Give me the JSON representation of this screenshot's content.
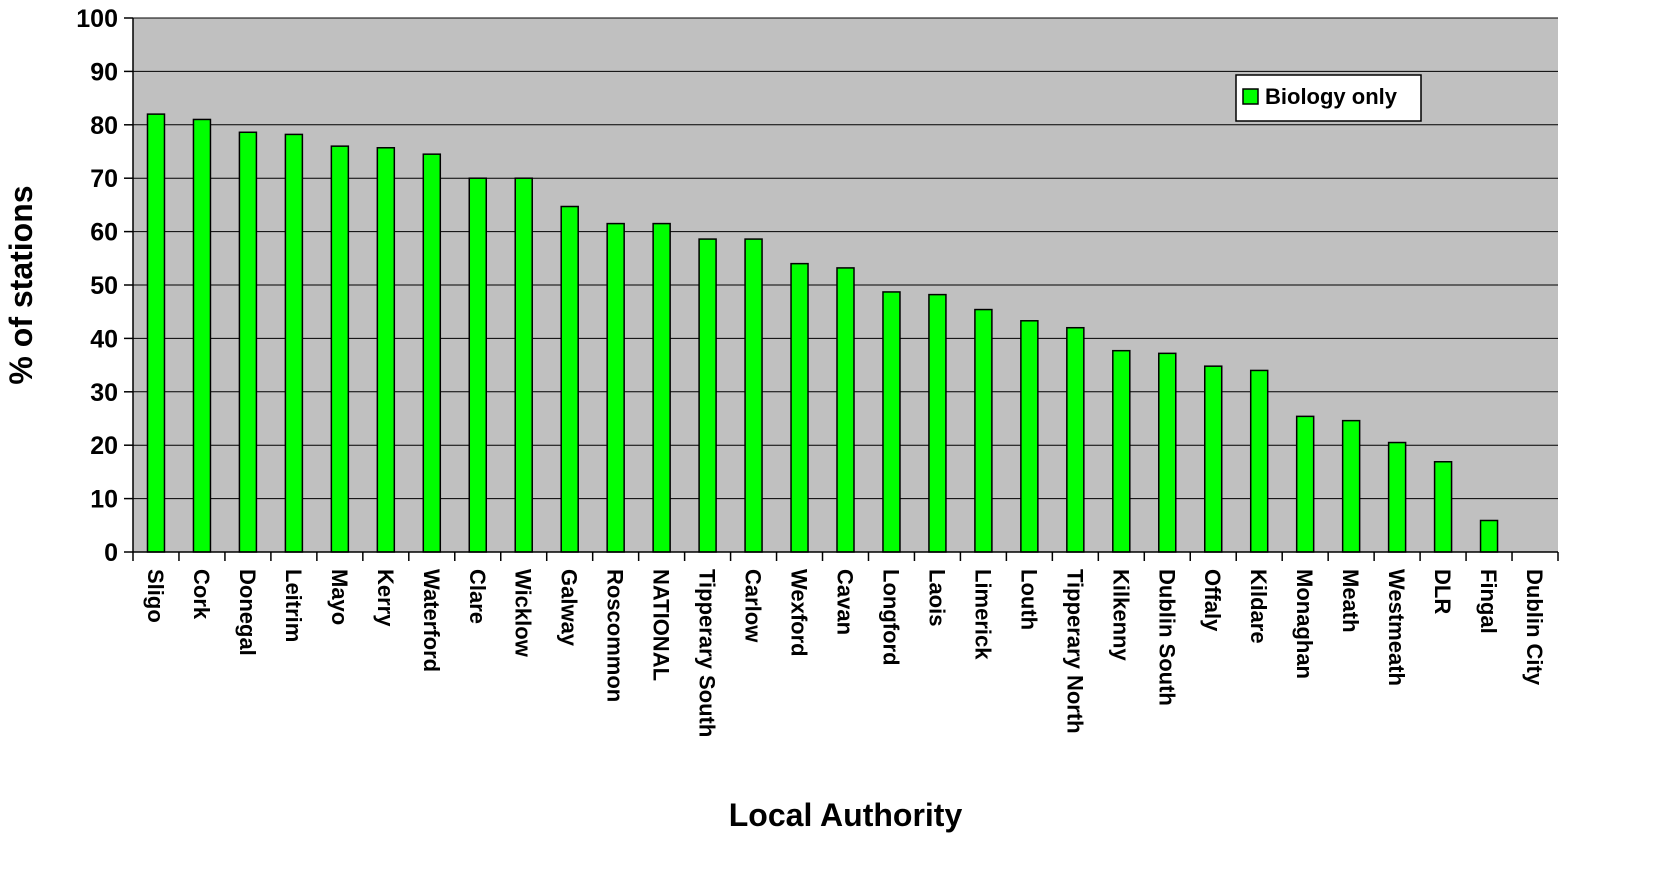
{
  "chart_data": {
    "type": "bar",
    "xlabel": "Local Authority",
    "ylabel": "% of stations",
    "ylim": [
      0,
      100
    ],
    "yticks": [
      0,
      10,
      20,
      30,
      40,
      50,
      60,
      70,
      80,
      90,
      100
    ],
    "grid": true,
    "legend_position": "top-right",
    "plot_background": "#c0c0c0",
    "categories": [
      "Sligo",
      "Cork",
      "Donegal",
      "Leitrim",
      "Mayo",
      "Kerry",
      "Waterford",
      "Clare",
      "Wicklow",
      "Galway",
      "Roscommon",
      "NATIONAL",
      "Tipperary South",
      "Carlow",
      "Wexford",
      "Cavan",
      "Longford",
      "Laois",
      "Limerick",
      "Louth",
      "Tipperary North",
      "Kilkenny",
      "Dublin South",
      "Offaly",
      "Kildare",
      "Monaghan",
      "Meath",
      "Westmeath",
      "DLR",
      "Fingal",
      "Dublin City"
    ],
    "series": [
      {
        "name": "Biology only",
        "color": "#00ff00",
        "values": [
          82,
          81,
          78.6,
          78.2,
          76,
          75.7,
          74.5,
          70,
          70,
          64.7,
          61.5,
          61.5,
          58.6,
          58.6,
          54,
          53.2,
          48.7,
          48.2,
          45.4,
          43.3,
          42,
          37.7,
          37.2,
          34.8,
          34,
          25.4,
          24.6,
          20.5,
          16.9,
          5.9,
          0
        ]
      }
    ]
  }
}
